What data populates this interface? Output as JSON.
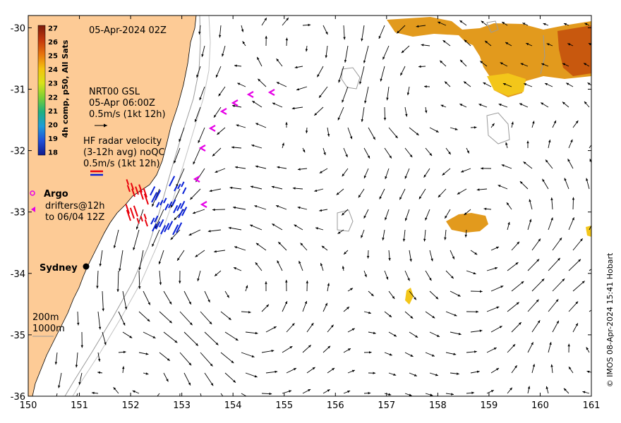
{
  "map": {
    "timestamp": "05-Apr-2024 02Z",
    "x_ticks": [
      "150",
      "151",
      "152",
      "153",
      "154",
      "155",
      "156",
      "157",
      "158",
      "159",
      "160",
      "161"
    ],
    "y_ticks": [
      "-30",
      "-31",
      "-32",
      "-33",
      "-34",
      "-35",
      "-36"
    ],
    "lon_range": [
      150,
      161
    ],
    "lat_range": [
      -36,
      -29.8
    ],
    "colors": {
      "land": "#fdcb96",
      "vector": "#000000",
      "radar_red": "#e8000b",
      "radar_blue": "#0a22d6",
      "argo": "#e600e6",
      "contour": "#9a9a9a"
    }
  },
  "colorbar": {
    "title": "4h comp, p50, All Sats",
    "ticks": [
      "27",
      "26",
      "25",
      "24",
      "23",
      "22",
      "21",
      "20",
      "19",
      "18"
    ],
    "tick_colors": [
      "#7b1a0a",
      "#c2360b",
      "#e8740d",
      "#f4c20f",
      "#d9e21a",
      "#7bcf35",
      "#1fb07f",
      "#1e9bd8",
      "#1f4fd8",
      "#101b8c"
    ]
  },
  "legend": {
    "product": "NRT00 GSL",
    "product_time": "05-Apr 06:00Z",
    "product_scale": "0.5m/s (1kt 12h)",
    "radar_title": "HF radar velocity",
    "radar_avg": "(3-12h avg) noQC",
    "radar_scale": "0.5m/s (1kt 12h)",
    "argo": "Argo",
    "drifters_1": "drifters@12h",
    "drifters_2": "to 06/04 12Z",
    "depth_1": "200m",
    "depth_2": "1000m"
  },
  "places": {
    "city": "Sydney"
  },
  "credit": "© IMOS 08-Apr-2024 15:41 Hobart"
}
